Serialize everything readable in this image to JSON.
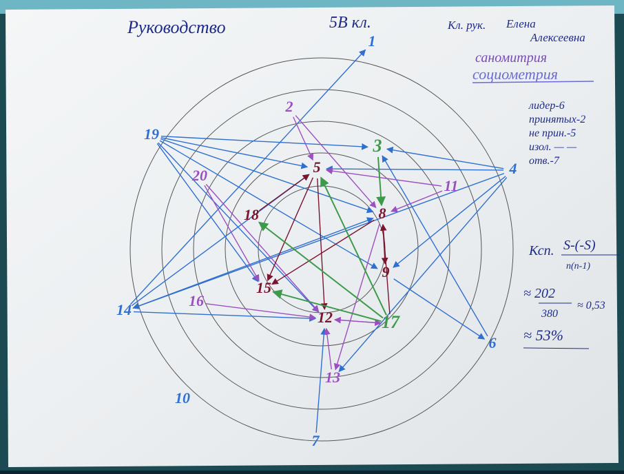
{
  "header": {
    "title": "Руководство",
    "class": "5В кл.",
    "teacher_label": "Кл. рук.",
    "teacher_name_1": "Елена",
    "teacher_name_2": "Алексеевна"
  },
  "heading": {
    "crossed": "саномитрия",
    "corrected": "социометрия"
  },
  "stats": [
    "лидер-6",
    "принятых-2",
    "не прин.-5",
    "изол. — —",
    "отв.-7"
  ],
  "formula": {
    "lhs": "Ксп.",
    "numerator": "S-(-S)",
    "denominator": "n(n-1)",
    "approx_num": "≈ 202",
    "approx_den": "380",
    "result1": "≈ 0,53",
    "result2": "≈ 53%"
  },
  "nodes": [
    {
      "label": "1"
    },
    {
      "label": "2"
    },
    {
      "label": "3"
    },
    {
      "label": "4"
    },
    {
      "label": "5"
    },
    {
      "label": "6"
    },
    {
      "label": "7"
    },
    {
      "label": "8"
    },
    {
      "label": "9"
    },
    {
      "label": "10"
    },
    {
      "label": "11"
    },
    {
      "label": "12"
    },
    {
      "label": "13"
    },
    {
      "label": "14"
    },
    {
      "label": "15"
    },
    {
      "label": "16"
    },
    {
      "label": "17"
    },
    {
      "label": "18"
    },
    {
      "label": "19"
    },
    {
      "label": "20"
    }
  ]
}
